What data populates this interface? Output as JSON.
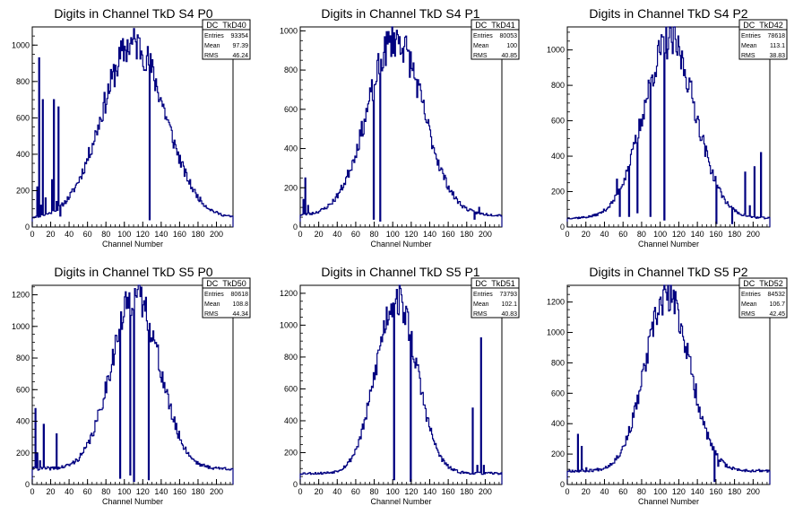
{
  "chart_data": [
    {
      "type": "histogram",
      "title": "Digits in Channel TkD S4 P0",
      "xlabel": "Channel Number",
      "ylabel": "",
      "xlim": [
        0,
        218
      ],
      "ylim": [
        0,
        1100
      ],
      "xticks": [
        0,
        20,
        40,
        60,
        80,
        100,
        120,
        140,
        160,
        180,
        200
      ],
      "yticks": [
        0,
        200,
        400,
        600,
        800,
        1000
      ],
      "color": "#000080",
      "stats": {
        "name": "DC_TkD40",
        "rows": [
          [
            "Entries",
            "93354"
          ],
          [
            "Mean",
            "97.39"
          ],
          [
            "RMS",
            "46.24"
          ]
        ]
      },
      "shape": {
        "mu": 110,
        "sigma": 34,
        "amp": 960,
        "base": 50,
        "seed": 11
      },
      "spikes": [
        [
          5,
          220
        ],
        [
          7,
          930
        ],
        [
          9,
          120
        ],
        [
          11,
          700
        ],
        [
          14,
          160
        ],
        [
          21,
          260
        ],
        [
          23,
          700
        ],
        [
          26,
          140
        ],
        [
          28,
          660
        ],
        [
          30,
          60
        ],
        [
          127,
          40
        ]
      ]
    },
    {
      "type": "histogram",
      "title": "Digits in Channel TkD S4 P1",
      "xlabel": "Channel Number",
      "ylabel": "",
      "xlim": [
        0,
        218
      ],
      "ylim": [
        0,
        1020
      ],
      "xticks": [
        0,
        20,
        40,
        60,
        80,
        100,
        120,
        140,
        160,
        180,
        200
      ],
      "yticks": [
        0,
        200,
        400,
        600,
        800,
        1000
      ],
      "color": "#000080",
      "stats": {
        "name": "DC_TkD41",
        "rows": [
          [
            "Entries",
            "80053"
          ],
          [
            "Mean",
            "100"
          ],
          [
            "RMS",
            "40.85"
          ]
        ]
      },
      "shape": {
        "mu": 103,
        "sigma": 30,
        "amp": 900,
        "base": 60,
        "seed": 23
      },
      "spikes": [
        [
          3,
          140
        ],
        [
          5,
          250
        ],
        [
          8,
          110
        ],
        [
          79,
          40
        ],
        [
          86,
          30
        ],
        [
          188,
          40
        ],
        [
          193,
          100
        ]
      ]
    },
    {
      "type": "histogram",
      "title": "Digits in Channel TkD S4 P2",
      "xlabel": "Channel Number",
      "ylabel": "",
      "xlim": [
        0,
        218
      ],
      "ylim": [
        0,
        1130
      ],
      "xticks": [
        0,
        20,
        40,
        60,
        80,
        100,
        120,
        140,
        160,
        180,
        200
      ],
      "yticks": [
        0,
        200,
        400,
        600,
        800,
        1000
      ],
      "color": "#000080",
      "stats": {
        "name": "DC_TkD42",
        "rows": [
          [
            "Entries",
            "78618"
          ],
          [
            "Mean",
            "113.1"
          ],
          [
            "RMS",
            "38.83"
          ]
        ]
      },
      "shape": {
        "mu": 110,
        "sigma": 28,
        "amp": 1000,
        "base": 50,
        "seed": 37
      },
      "spikes": [
        [
          53,
          270
        ],
        [
          56,
          60
        ],
        [
          63,
          320
        ],
        [
          66,
          60
        ],
        [
          72,
          470
        ],
        [
          75,
          80
        ],
        [
          89,
          60
        ],
        [
          104,
          40
        ],
        [
          160,
          20
        ],
        [
          177,
          20
        ],
        [
          191,
          310
        ],
        [
          196,
          120
        ],
        [
          201,
          340
        ],
        [
          208,
          420
        ]
      ]
    },
    {
      "type": "histogram",
      "title": "Digits in Channel TkD S5 P0",
      "xlabel": "Channel Number",
      "ylabel": "",
      "xlim": [
        0,
        218
      ],
      "ylim": [
        0,
        1260
      ],
      "xticks": [
        0,
        20,
        40,
        60,
        80,
        100,
        120,
        140,
        160,
        180,
        200
      ],
      "yticks": [
        0,
        200,
        400,
        600,
        800,
        1000,
        1200
      ],
      "color": "#000080",
      "stats": {
        "name": "DC_TkD50",
        "rows": [
          [
            "Entries",
            "80618"
          ],
          [
            "Mean",
            "108.8"
          ],
          [
            "RMS",
            "44.34"
          ]
        ]
      },
      "shape": {
        "mu": 112,
        "sigma": 26,
        "amp": 1100,
        "base": 100,
        "seed": 41
      },
      "spikes": [
        [
          3,
          480
        ],
        [
          5,
          200
        ],
        [
          8,
          150
        ],
        [
          12,
          380
        ],
        [
          15,
          100
        ],
        [
          26,
          320
        ],
        [
          29,
          100
        ],
        [
          95,
          40
        ],
        [
          106,
          60
        ],
        [
          110,
          20
        ],
        [
          126,
          30
        ]
      ]
    },
    {
      "type": "histogram",
      "title": "Digits in Channel TkD S5 P1",
      "xlabel": "Channel Number",
      "ylabel": "",
      "xlim": [
        0,
        218
      ],
      "ylim": [
        0,
        1250
      ],
      "xticks": [
        0,
        20,
        40,
        60,
        80,
        100,
        120,
        140,
        160,
        180,
        200
      ],
      "yticks": [
        0,
        200,
        400,
        600,
        800,
        1000,
        1200
      ],
      "color": "#000080",
      "stats": {
        "name": "DC_TkD51",
        "rows": [
          [
            "Entries",
            "73793"
          ],
          [
            "Mean",
            "102.1"
          ],
          [
            "RMS",
            "40.83"
          ]
        ]
      },
      "shape": {
        "mu": 104,
        "sigma": 22,
        "amp": 1100,
        "base": 70,
        "seed": 53
      },
      "spikes": [
        [
          101,
          30
        ],
        [
          119,
          20
        ],
        [
          186,
          480
        ],
        [
          191,
          120
        ],
        [
          195,
          920
        ],
        [
          198,
          120
        ]
      ]
    },
    {
      "type": "histogram",
      "title": "Digits in Channel TkD S5 P2",
      "xlabel": "Channel Number",
      "ylabel": "",
      "xlim": [
        0,
        218
      ],
      "ylim": [
        0,
        1310
      ],
      "xticks": [
        0,
        20,
        40,
        60,
        80,
        100,
        120,
        140,
        160,
        180,
        200
      ],
      "yticks": [
        0,
        200,
        400,
        600,
        800,
        1000,
        1200
      ],
      "color": "#000080",
      "stats": {
        "name": "DC_TkD52",
        "rows": [
          [
            "Entries",
            "84532"
          ],
          [
            "Mean",
            "106.7"
          ],
          [
            "RMS",
            "42.45"
          ]
        ]
      },
      "shape": {
        "mu": 108,
        "sigma": 24,
        "amp": 1150,
        "base": 90,
        "seed": 67
      },
      "spikes": [
        [
          11,
          330
        ],
        [
          15,
          250
        ],
        [
          20,
          110
        ],
        [
          158,
          20
        ],
        [
          162,
          120
        ]
      ]
    }
  ]
}
